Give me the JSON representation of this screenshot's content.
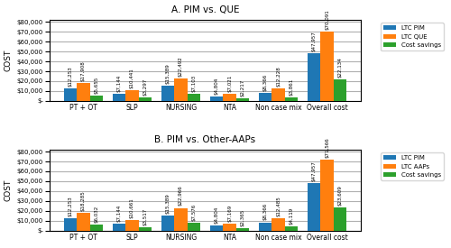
{
  "chart_data": [
    {
      "type": "bar",
      "title": "A. PIM vs. QUE",
      "ylabel": "COST",
      "categories": [
        "PT + OT",
        "SLP",
        "NURSING",
        "NTA",
        "Non case mix",
        "Overall cost"
      ],
      "series": [
        {
          "name": "LTC PIM",
          "values": [
            12253,
            7144,
            15389,
            4804,
            8366,
            47957
          ],
          "value_labels": [
            "$12,253",
            "$7,144",
            "$15,389",
            "$4,804",
            "$8,366",
            "$47,957"
          ]
        },
        {
          "name": "LTC QUE",
          "values": [
            17908,
            10441,
            22492,
            7021,
            12228,
            70091
          ],
          "value_labels": [
            "$17,908",
            "$10,441",
            "$22,492",
            "$7,021",
            "$12,228",
            "$70,091"
          ]
        },
        {
          "name": "Cost savings",
          "values": [
            5655,
            3297,
            7103,
            2217,
            3861,
            22134
          ],
          "value_labels": [
            "$5,655",
            "$3,297",
            "$7,103",
            "$2,217",
            "$3,861",
            "$22,134"
          ]
        }
      ],
      "ylim": [
        0,
        82000
      ],
      "yticks": [
        {
          "value": 0,
          "label": "$-"
        },
        {
          "value": 10000,
          "label": "$10,000"
        },
        {
          "value": 20000,
          "label": "$20,000"
        },
        {
          "value": 30000,
          "label": "$30,000"
        },
        {
          "value": 40000,
          "label": "$40,000"
        },
        {
          "value": 50000,
          "label": "$50,000"
        },
        {
          "value": 60000,
          "label": "$60,000"
        },
        {
          "value": 70000,
          "label": "$70,000"
        },
        {
          "value": 80000,
          "label": "$80,000"
        }
      ],
      "grid": true,
      "legend": "upper right",
      "data_labels": true
    },
    {
      "type": "bar",
      "title": "B. PIM vs. Other-AAPs",
      "ylabel": "COST",
      "categories": [
        "PT + OT",
        "SLP",
        "NURSING",
        "NTA",
        "Non case mix",
        "Overall cost"
      ],
      "series": [
        {
          "name": "LTC PIM",
          "values": [
            12253,
            7144,
            15389,
            4804,
            8366,
            47957
          ],
          "value_labels": [
            "$12,253",
            "$7,144",
            "$15,389",
            "$4,804",
            "$8,366",
            "$47,957"
          ]
        },
        {
          "name": "LTC AAPs",
          "values": [
            18285,
            10661,
            22966,
            7169,
            12485,
            71566
          ],
          "value_labels": [
            "$18,285",
            "$10,661",
            "$22,966",
            "$7,169",
            "$12,485",
            "$71,566"
          ]
        },
        {
          "name": "Cost savings",
          "values": [
            6032,
            3517,
            7576,
            2365,
            4119,
            23609
          ],
          "value_labels": [
            "$6,032",
            "$3,517",
            "$7,576",
            "$2,365",
            "$4,119",
            "$23,609"
          ]
        }
      ],
      "ylim": [
        0,
        82000
      ],
      "yticks": [
        {
          "value": 0,
          "label": "$-"
        },
        {
          "value": 10000,
          "label": "$10,000"
        },
        {
          "value": 20000,
          "label": "$20,000"
        },
        {
          "value": 30000,
          "label": "$30,000"
        },
        {
          "value": 40000,
          "label": "$40,000"
        },
        {
          "value": 50000,
          "label": "$50,000"
        },
        {
          "value": 60000,
          "label": "$60,000"
        },
        {
          "value": 70000,
          "label": "$70,000"
        },
        {
          "value": 80000,
          "label": "$80,000"
        }
      ],
      "grid": true,
      "legend": "upper right",
      "data_labels": true
    }
  ]
}
